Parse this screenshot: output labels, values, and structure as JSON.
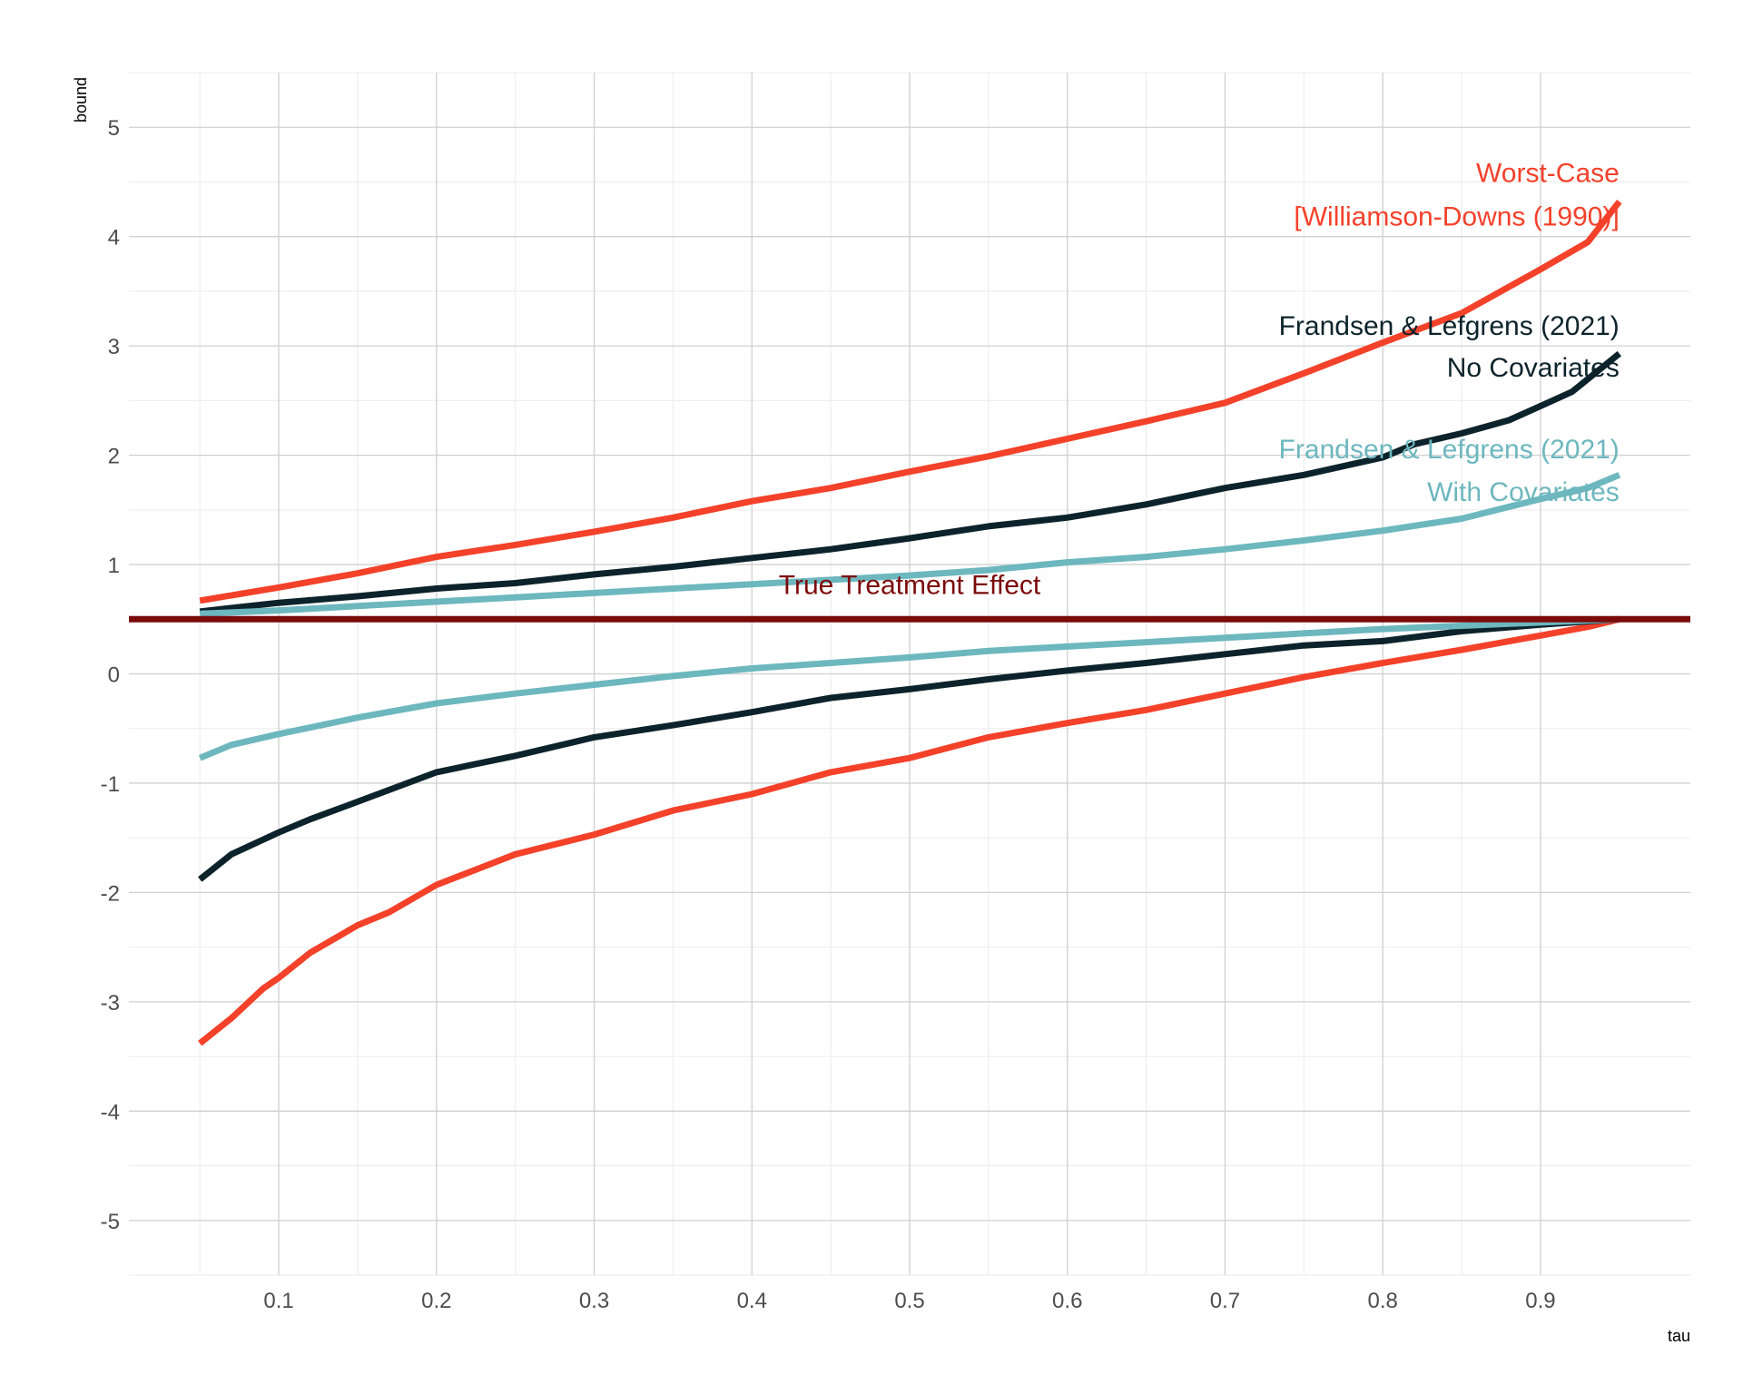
{
  "chart_data": {
    "type": "line",
    "xlabel": "tau",
    "ylabel": "bound",
    "xlim": [
      0.005,
      0.995
    ],
    "ylim": [
      -5.5,
      5.5
    ],
    "x_ticks": [
      0.1,
      0.2,
      0.3,
      0.4,
      0.5,
      0.6,
      0.7,
      0.8,
      0.9
    ],
    "y_ticks": [
      -5,
      -4,
      -3,
      -2,
      -1,
      0,
      1,
      2,
      3,
      4,
      5
    ],
    "grid": true,
    "legend": "none",
    "reference_line": {
      "y": 0.5,
      "label": "True Treatment Effect",
      "color": "#7b0a0a"
    },
    "series": [
      {
        "group": "Worst-Case [Williamson-Downs (1990)]",
        "bound": "upper",
        "color": "#f4412a",
        "points": [
          [
            0.05,
            0.67
          ],
          [
            0.1,
            0.79
          ],
          [
            0.15,
            0.92
          ],
          [
            0.2,
            1.07
          ],
          [
            0.25,
            1.18
          ],
          [
            0.3,
            1.3
          ],
          [
            0.35,
            1.43
          ],
          [
            0.4,
            1.58
          ],
          [
            0.45,
            1.7
          ],
          [
            0.5,
            1.85
          ],
          [
            0.55,
            1.99
          ],
          [
            0.6,
            2.15
          ],
          [
            0.65,
            2.31
          ],
          [
            0.7,
            2.48
          ],
          [
            0.75,
            2.75
          ],
          [
            0.8,
            3.03
          ],
          [
            0.85,
            3.3
          ],
          [
            0.9,
            3.7
          ],
          [
            0.93,
            3.95
          ],
          [
            0.95,
            4.32
          ]
        ]
      },
      {
        "group": "Worst-Case [Williamson-Downs (1990)]",
        "bound": "lower",
        "color": "#f4412a",
        "points": [
          [
            0.05,
            -3.38
          ],
          [
            0.07,
            -3.15
          ],
          [
            0.09,
            -2.88
          ],
          [
            0.1,
            -2.78
          ],
          [
            0.12,
            -2.55
          ],
          [
            0.15,
            -2.3
          ],
          [
            0.17,
            -2.18
          ],
          [
            0.2,
            -1.93
          ],
          [
            0.25,
            -1.65
          ],
          [
            0.3,
            -1.47
          ],
          [
            0.35,
            -1.25
          ],
          [
            0.4,
            -1.1
          ],
          [
            0.45,
            -0.9
          ],
          [
            0.5,
            -0.77
          ],
          [
            0.55,
            -0.58
          ],
          [
            0.6,
            -0.45
          ],
          [
            0.65,
            -0.33
          ],
          [
            0.7,
            -0.18
          ],
          [
            0.75,
            -0.03
          ],
          [
            0.8,
            0.1
          ],
          [
            0.85,
            0.22
          ],
          [
            0.9,
            0.35
          ],
          [
            0.93,
            0.43
          ],
          [
            0.95,
            0.5
          ]
        ]
      },
      {
        "group": "Frandsen & Lefgrens (2021) No Covariates",
        "bound": "upper",
        "color": "#0d232b",
        "points": [
          [
            0.05,
            0.57
          ],
          [
            0.1,
            0.65
          ],
          [
            0.15,
            0.71
          ],
          [
            0.2,
            0.78
          ],
          [
            0.25,
            0.83
          ],
          [
            0.3,
            0.91
          ],
          [
            0.35,
            0.98
          ],
          [
            0.4,
            1.06
          ],
          [
            0.45,
            1.14
          ],
          [
            0.5,
            1.24
          ],
          [
            0.55,
            1.35
          ],
          [
            0.6,
            1.43
          ],
          [
            0.65,
            1.55
          ],
          [
            0.7,
            1.7
          ],
          [
            0.75,
            1.82
          ],
          [
            0.8,
            1.98
          ],
          [
            0.82,
            2.1
          ],
          [
            0.85,
            2.2
          ],
          [
            0.88,
            2.32
          ],
          [
            0.9,
            2.45
          ],
          [
            0.92,
            2.58
          ],
          [
            0.95,
            2.93
          ]
        ]
      },
      {
        "group": "Frandsen & Lefgrens (2021) No Covariates",
        "bound": "lower",
        "color": "#0d232b",
        "points": [
          [
            0.05,
            -1.88
          ],
          [
            0.07,
            -1.65
          ],
          [
            0.1,
            -1.45
          ],
          [
            0.12,
            -1.33
          ],
          [
            0.15,
            -1.17
          ],
          [
            0.2,
            -0.9
          ],
          [
            0.25,
            -0.75
          ],
          [
            0.3,
            -0.58
          ],
          [
            0.35,
            -0.47
          ],
          [
            0.4,
            -0.35
          ],
          [
            0.45,
            -0.22
          ],
          [
            0.5,
            -0.14
          ],
          [
            0.55,
            -0.05
          ],
          [
            0.6,
            0.03
          ],
          [
            0.65,
            0.1
          ],
          [
            0.7,
            0.18
          ],
          [
            0.75,
            0.26
          ],
          [
            0.8,
            0.3
          ],
          [
            0.85,
            0.39
          ],
          [
            0.9,
            0.45
          ],
          [
            0.95,
            0.5
          ]
        ]
      },
      {
        "group": "Frandsen & Lefgrens (2021) With Covariates",
        "bound": "upper",
        "color": "#6db7be",
        "points": [
          [
            0.05,
            0.55
          ],
          [
            0.1,
            0.58
          ],
          [
            0.15,
            0.62
          ],
          [
            0.2,
            0.66
          ],
          [
            0.25,
            0.7
          ],
          [
            0.3,
            0.74
          ],
          [
            0.35,
            0.78
          ],
          [
            0.4,
            0.82
          ],
          [
            0.45,
            0.86
          ],
          [
            0.5,
            0.9
          ],
          [
            0.55,
            0.95
          ],
          [
            0.6,
            1.02
          ],
          [
            0.65,
            1.07
          ],
          [
            0.7,
            1.14
          ],
          [
            0.75,
            1.22
          ],
          [
            0.8,
            1.31
          ],
          [
            0.85,
            1.42
          ],
          [
            0.9,
            1.6
          ],
          [
            0.93,
            1.7
          ],
          [
            0.95,
            1.82
          ]
        ]
      },
      {
        "group": "Frandsen & Lefgrens (2021) With Covariates",
        "bound": "lower",
        "color": "#6db7be",
        "points": [
          [
            0.05,
            -0.77
          ],
          [
            0.07,
            -0.65
          ],
          [
            0.1,
            -0.55
          ],
          [
            0.15,
            -0.4
          ],
          [
            0.2,
            -0.27
          ],
          [
            0.25,
            -0.18
          ],
          [
            0.3,
            -0.1
          ],
          [
            0.35,
            -0.02
          ],
          [
            0.4,
            0.05
          ],
          [
            0.45,
            0.1
          ],
          [
            0.5,
            0.15
          ],
          [
            0.55,
            0.21
          ],
          [
            0.6,
            0.25
          ],
          [
            0.65,
            0.29
          ],
          [
            0.7,
            0.33
          ],
          [
            0.75,
            0.37
          ],
          [
            0.8,
            0.41
          ],
          [
            0.85,
            0.44
          ],
          [
            0.9,
            0.47
          ],
          [
            0.95,
            0.5
          ]
        ]
      }
    ],
    "annotations": [
      {
        "text": "Worst-Case",
        "x": 0.95,
        "y": 4.5,
        "anchor": "end",
        "color": "#f4412a"
      },
      {
        "text": "[Williamson-Downs (1990)]",
        "x": 0.95,
        "y": 4.1,
        "anchor": "end",
        "color": "#f4412a"
      },
      {
        "text": "Frandsen & Lefgrens (2021)",
        "x": 0.95,
        "y": 3.1,
        "anchor": "end",
        "color": "#0d232b"
      },
      {
        "text": "No Covariates",
        "x": 0.95,
        "y": 2.72,
        "anchor": "end",
        "color": "#0d232b"
      },
      {
        "text": "Frandsen & Lefgrens (2021)",
        "x": 0.95,
        "y": 1.97,
        "anchor": "end",
        "color": "#6db7be"
      },
      {
        "text": "With Covariates",
        "x": 0.95,
        "y": 1.58,
        "anchor": "end",
        "color": "#6db7be"
      },
      {
        "text": "True Treatment Effect",
        "x": 0.5,
        "y": 0.73,
        "anchor": "middle",
        "color": "#7b0a0a"
      }
    ]
  }
}
